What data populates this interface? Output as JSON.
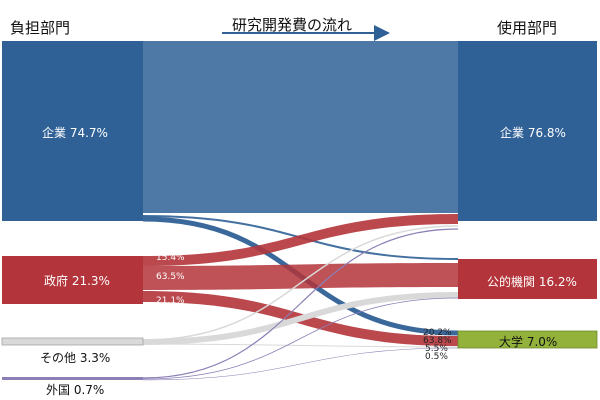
{
  "header": {
    "left": "負担部門",
    "center": "研究開発費の流れ",
    "right": "使用部門"
  },
  "colors": {
    "company": "#2f6096",
    "government": "#b3343a",
    "other": "#d9d9d9",
    "foreign": "#8c7fb5",
    "company_use": "#2f6096",
    "public": "#b3343a",
    "university": "#93b23b"
  },
  "sources": {
    "company": "企業 74.7%",
    "government": "政府 21.3%",
    "other": "その他 3.3%",
    "foreign": "外国 0.7%"
  },
  "targets": {
    "company": "企業 76.8%",
    "public": "公的機関 16.2%",
    "university": "大学 7.0%"
  },
  "flow_labels": {
    "gov_to_company": "15.4%",
    "gov_to_public": "63.5%",
    "gov_to_university": "21.1%",
    "univ_from_company": "20.2%",
    "univ_from_government": "63.8%",
    "univ_from_other": "5.5%",
    "univ_from_foreign": "0.5%"
  },
  "chart_data": {
    "type": "sankey",
    "unit": "%",
    "nodes": {
      "sources": [
        {
          "id": "company",
          "label": "企業",
          "value": 74.7
        },
        {
          "id": "government",
          "label": "政府",
          "value": 21.3
        },
        {
          "id": "other",
          "label": "その他",
          "value": 3.3
        },
        {
          "id": "foreign",
          "label": "外国",
          "value": 0.7
        }
      ],
      "targets": [
        {
          "id": "company_use",
          "label": "企業",
          "value": 76.8
        },
        {
          "id": "public",
          "label": "公的機関",
          "value": 16.2
        },
        {
          "id": "university",
          "label": "大学",
          "value": 7.0
        }
      ]
    },
    "printed_shares": {
      "government_by_destination": {
        "company_use": 15.4,
        "public": 63.5,
        "university": 21.1
      },
      "university_by_source": {
        "company": 20.2,
        "government": 63.8,
        "other": 5.5,
        "foreign": 0.5
      }
    }
  }
}
